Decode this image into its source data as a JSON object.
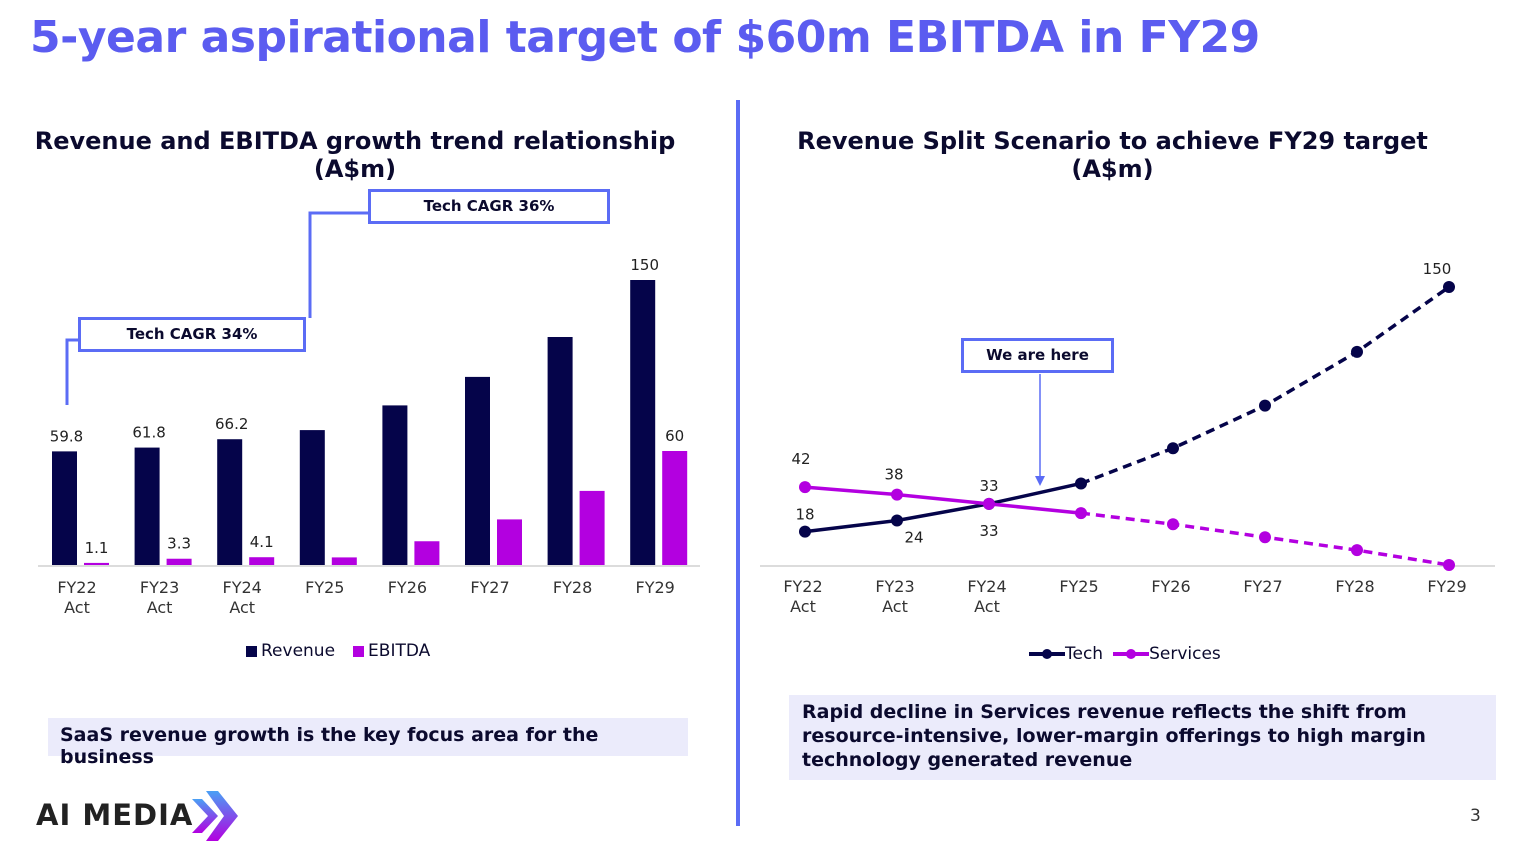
{
  "title": "5-year aspirational target of $60m EBITDA in FY29",
  "colors": {
    "accent": "#5b6cf5",
    "navy": "#05044a",
    "magenta": "#b300e0",
    "title": "#5b5cf0"
  },
  "chart_data": [
    {
      "type": "bar",
      "title": "Revenue and EBITDA growth trend relationship (A$m)",
      "categories": [
        "FY22 Act",
        "FY23 Act",
        "FY24 Act",
        "FY25",
        "FY26",
        "FY27",
        "FY28",
        "FY29"
      ],
      "category_lines": [
        [
          "FY22",
          "Act"
        ],
        [
          "FY23",
          "Act"
        ],
        [
          "FY24",
          "Act"
        ],
        [
          "FY25",
          ""
        ],
        [
          "FY26",
          ""
        ],
        [
          "FY27",
          ""
        ],
        [
          "FY28",
          ""
        ],
        [
          "FY29",
          ""
        ]
      ],
      "series": [
        {
          "name": "Revenue",
          "color": "#05044a",
          "values": [
            59.8,
            61.8,
            66.2,
            71,
            84,
            99,
            120,
            150
          ],
          "labels": [
            "59.8",
            "61.8",
            "66.2",
            "",
            "",
            "",
            "",
            "150"
          ]
        },
        {
          "name": "EBITDA",
          "color": "#b300e0",
          "values": [
            1.1,
            3.3,
            4.1,
            4,
            12.5,
            24,
            39,
            60
          ],
          "labels": [
            "1.1",
            "3.3",
            "4.1",
            "",
            "",
            "",
            "",
            "60"
          ]
        }
      ],
      "ylim": [
        0,
        150
      ],
      "legend": "bottom",
      "annotations": [
        "Tech CAGR 34%",
        "Tech CAGR 36%"
      ]
    },
    {
      "type": "line",
      "title": "Revenue Split Scenario to achieve FY29 target (A$m)",
      "categories": [
        "FY22 Act",
        "FY23 Act",
        "FY24 Act",
        "FY25",
        "FY26",
        "FY27",
        "FY28",
        "FY29"
      ],
      "category_lines": [
        [
          "FY22",
          "Act"
        ],
        [
          "FY23",
          "Act"
        ],
        [
          "FY24",
          "Act"
        ],
        [
          "FY25",
          ""
        ],
        [
          "FY26",
          ""
        ],
        [
          "FY27",
          ""
        ],
        [
          "FY28",
          ""
        ],
        [
          "FY29",
          ""
        ]
      ],
      "series": [
        {
          "name": "Tech",
          "color": "#05044a",
          "values": [
            18,
            24,
            33,
            44,
            63,
            86,
            115,
            150
          ],
          "labels": [
            "18",
            "24",
            "33",
            "",
            "",
            "",
            "",
            "150"
          ]
        },
        {
          "name": "Services",
          "color": "#b300e0",
          "values": [
            42,
            38,
            33,
            28,
            22,
            15,
            8,
            0
          ],
          "labels": [
            "42",
            "38",
            "33",
            "",
            "",
            "",
            "",
            ""
          ]
        }
      ],
      "actual_until_index": 3,
      "ylim": [
        0,
        150
      ],
      "legend": "bottom",
      "annotations": [
        "We are here"
      ]
    }
  ],
  "left_title_line1": "Revenue and EBITDA growth trend relationship",
  "left_title_line2": "(A$m)",
  "right_title_line1": "Revenue Split Scenario to achieve FY29 target",
  "right_title_line2": "(A$m)",
  "callouts": {
    "cagr34": "Tech CAGR 34%",
    "cagr36": "Tech CAGR 36%",
    "here": "We are here"
  },
  "notes": {
    "left": "SaaS revenue growth is the key focus area for the business",
    "right": "Rapid decline in Services revenue reflects the shift from resource-intensive, lower-margin offerings to high margin technology generated revenue"
  },
  "legend": {
    "revenue": "Revenue",
    "ebitda": "EBITDA",
    "tech": "Tech",
    "services": "Services"
  },
  "logo": "AI MEDIA",
  "page_number": "3"
}
